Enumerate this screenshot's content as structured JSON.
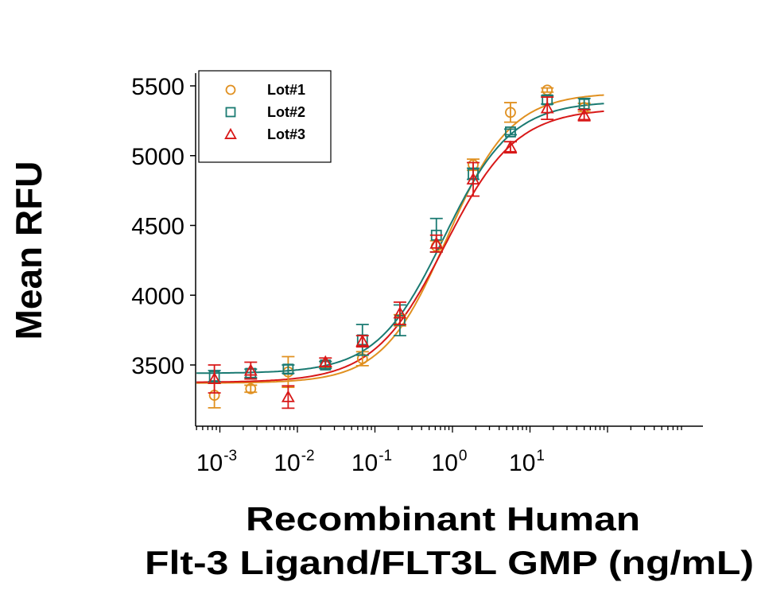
{
  "chart_data": {
    "type": "scatter",
    "title": "",
    "xlabel_line1": "Recombinant Human",
    "xlabel_line2": "Flt-3 Ligand/FLT3L GMP (ng/mL)",
    "ylabel": "Mean RFU",
    "xscale": "log",
    "xlim": [
      0.0005,
      90
    ],
    "ylim": [
      3070,
      5580
    ],
    "yticks": [
      3500,
      4000,
      4500,
      5000,
      5500
    ],
    "ytick_labels": [
      "3500",
      "4000",
      "4500",
      "5000",
      "5500"
    ],
    "xticks": [
      0.001,
      0.01,
      0.1,
      1,
      10
    ],
    "xtick_labels": [
      {
        "base": "10",
        "exp": "-3"
      },
      {
        "base": "10",
        "exp": "-2"
      },
      {
        "base": "10",
        "exp": "-1"
      },
      {
        "base": "10",
        "exp": "0"
      },
      {
        "base": "10",
        "exp": "1"
      }
    ],
    "grid": false,
    "legend_position": "top-left",
    "x": [
      0.00085,
      0.0025,
      0.0076,
      0.023,
      0.069,
      0.21,
      0.62,
      1.85,
      5.6,
      16.7,
      50
    ],
    "series": [
      {
        "name": "Lot#1",
        "marker": "circle",
        "color": "#E09020",
        "values": [
          3283,
          3330,
          3450,
          3505,
          3545,
          3820,
          4350,
          4935,
          5310,
          5470,
          5345
        ],
        "errors": [
          90,
          25,
          110,
          20,
          50,
          40,
          40,
          40,
          70,
          15,
          30
        ],
        "fit": {
          "bottom": 3370,
          "top": 5450,
          "ec50": 0.85,
          "hill": 1.05
        }
      },
      {
        "name": "Lot#2",
        "marker": "square",
        "color": "#1A7A72",
        "values": [
          3420,
          3440,
          3470,
          3500,
          3680,
          3820,
          4430,
          4870,
          5170,
          5400,
          5370
        ],
        "errors": [
          40,
          30,
          30,
          25,
          110,
          110,
          120,
          40,
          20,
          30,
          40
        ],
        "fit": {
          "bottom": 3440,
          "top": 5390,
          "ec50": 0.78,
          "hill": 1.0
        }
      },
      {
        "name": "Lot#3",
        "marker": "triangle",
        "color": "#D81818",
        "values": [
          3400,
          3460,
          3270,
          3520,
          3670,
          3870,
          4370,
          4830,
          5060,
          5340,
          5290
        ],
        "errors": [
          100,
          60,
          80,
          30,
          40,
          80,
          60,
          120,
          40,
          80,
          40
        ],
        "fit": {
          "bottom": 3375,
          "top": 5340,
          "ec50": 0.8,
          "hill": 0.95
        }
      }
    ]
  }
}
